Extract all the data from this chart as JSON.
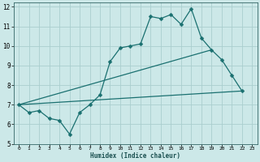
{
  "title": "",
  "xlabel": "Humidex (Indice chaleur)",
  "ylabel": "",
  "bg_color": "#cce8e8",
  "grid_color": "#aacece",
  "line_color": "#1a7070",
  "xlim": [
    -0.5,
    23.5
  ],
  "ylim": [
    5,
    12.2
  ],
  "yticks": [
    5,
    6,
    7,
    8,
    9,
    10,
    11,
    12
  ],
  "xticks": [
    0,
    1,
    2,
    3,
    4,
    5,
    6,
    7,
    8,
    9,
    10,
    11,
    12,
    13,
    14,
    15,
    16,
    17,
    18,
    19,
    20,
    21,
    22,
    23
  ],
  "line1_x": [
    0,
    1,
    2,
    3,
    4,
    5,
    6,
    7,
    8,
    9,
    10,
    11,
    12,
    13,
    14,
    15,
    16,
    17,
    18,
    19,
    20,
    21,
    22
  ],
  "line1_y": [
    7.0,
    6.6,
    6.7,
    6.3,
    6.2,
    5.5,
    6.6,
    7.0,
    7.5,
    9.2,
    9.9,
    10.0,
    10.1,
    11.5,
    11.4,
    11.6,
    11.1,
    11.9,
    10.4,
    9.8,
    9.3,
    8.5,
    7.7
  ],
  "line2_x": [
    0,
    19
  ],
  "line2_y": [
    7.0,
    9.8
  ],
  "line3_x": [
    0,
    22
  ],
  "line3_y": [
    7.0,
    7.7
  ],
  "marker": "D",
  "markersize": 2.5,
  "linewidth": 0.9
}
